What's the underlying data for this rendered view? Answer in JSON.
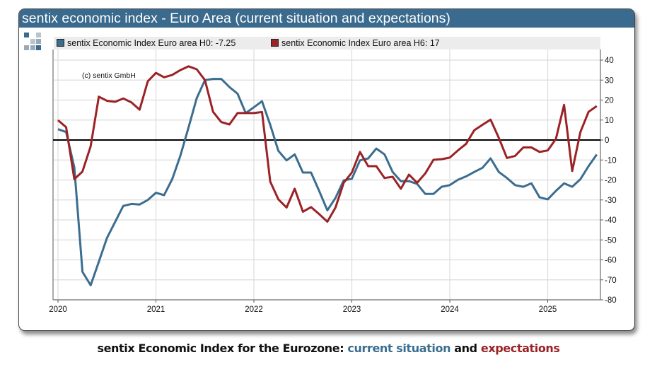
{
  "title": "sentix economic index - Euro Area (current situation and expectations)",
  "copyright": "(c) sentix GmbH",
  "caption": {
    "prefix": "sentix Economic Index for the Eurozone: ",
    "part1": "current situation",
    "mid": " and ",
    "part2": "expectations"
  },
  "colors": {
    "titlebar": "#3a6a8d",
    "current": "#3b6d8f",
    "expectations": "#9b2226",
    "zero_line": "#000000"
  },
  "chart_data": {
    "type": "line",
    "x": [
      "2020-01",
      "2020-02",
      "2020-03",
      "2020-04",
      "2020-05",
      "2020-06",
      "2020-07",
      "2020-08",
      "2020-09",
      "2020-10",
      "2020-11",
      "2020-12",
      "2021-01",
      "2021-02",
      "2021-03",
      "2021-04",
      "2021-05",
      "2021-06",
      "2021-07",
      "2021-08",
      "2021-09",
      "2021-10",
      "2021-11",
      "2021-12",
      "2022-01",
      "2022-02",
      "2022-03",
      "2022-04",
      "2022-05",
      "2022-06",
      "2022-07",
      "2022-08",
      "2022-09",
      "2022-10",
      "2022-11",
      "2022-12",
      "2023-01",
      "2023-02",
      "2023-03",
      "2023-04",
      "2023-05",
      "2023-06",
      "2023-07",
      "2023-08",
      "2023-09",
      "2023-10",
      "2023-11",
      "2023-12",
      "2024-01",
      "2024-02",
      "2024-03",
      "2024-04",
      "2024-05",
      "2024-06",
      "2024-07",
      "2024-08",
      "2024-09",
      "2024-10",
      "2024-11",
      "2024-12",
      "2025-01",
      "2025-02",
      "2025-03",
      "2025-04",
      "2025-05",
      "2025-06",
      "2025-07"
    ],
    "series": [
      {
        "name": "sentix Economic Index Euro area H0: -7.25",
        "color": "#3b6d8f",
        "values": [
          5.4,
          4,
          -13.7,
          -66,
          -72.7,
          -61,
          -49,
          -41,
          -33,
          -32,
          -32.3,
          -30,
          -26.4,
          -27.6,
          -19.5,
          -7.8,
          6.4,
          21,
          30,
          30.6,
          30.6,
          26.5,
          23.2,
          13.5,
          16.4,
          19.4,
          7.6,
          -5.4,
          -10.2,
          -7.2,
          -16.3,
          -16.3,
          -25.5,
          -35.2,
          -29,
          -20.2,
          -19.4,
          -10.2,
          -9.2,
          -4.3,
          -7.2,
          -16,
          -20.6,
          -20.6,
          -22,
          -27,
          -27,
          -23.4,
          -22.6,
          -19.9,
          -18.2,
          -16,
          -13.9,
          -9.2,
          -16,
          -19,
          -22.6,
          -23.4,
          -21.7,
          -28.7,
          -29.7,
          -25.5,
          -21.7,
          -23.4,
          -19.6,
          -13.1,
          -7.25
        ]
      },
      {
        "name": "sentix Economic Index Euro area H6: 17",
        "color": "#9b2226",
        "values": [
          9.9,
          6.4,
          -19.6,
          -15.8,
          -3.1,
          21.7,
          19.6,
          19.1,
          20.8,
          18.8,
          15.2,
          29.4,
          33.6,
          31.4,
          32.6,
          35,
          36.9,
          35.4,
          30,
          14.1,
          9,
          7.8,
          13.5,
          13.5,
          13.5,
          14,
          -20.8,
          -29.7,
          -33.8,
          -24.4,
          -35.9,
          -33.6,
          -37.1,
          -40.9,
          -33.8,
          -21.4,
          -16.3,
          -6,
          -13.1,
          -13.1,
          -19,
          -18.4,
          -24.4,
          -17.3,
          -21.4,
          -16.7,
          -9.9,
          -9.6,
          -8.8,
          -5.2,
          -1.9,
          4.9,
          7.6,
          10.2,
          1.1,
          -9,
          -8,
          -3.7,
          -3.7,
          -6,
          -5.2,
          0.5,
          17.6,
          -15.5,
          4,
          14.1,
          17
        ]
      }
    ],
    "x_tick_labels": [
      "2020",
      "2021",
      "2022",
      "2023",
      "2024",
      "2025"
    ],
    "y_tick_labels": [
      "40",
      "30",
      "20",
      "10",
      "0",
      "-10",
      "-20",
      "-30",
      "-40",
      "-50",
      "-60",
      "-70",
      "-80"
    ],
    "ylim": [
      -80,
      40
    ],
    "y_axis_side": "right",
    "grid": true,
    "legend_placement": "top",
    "reference_line": 0
  }
}
